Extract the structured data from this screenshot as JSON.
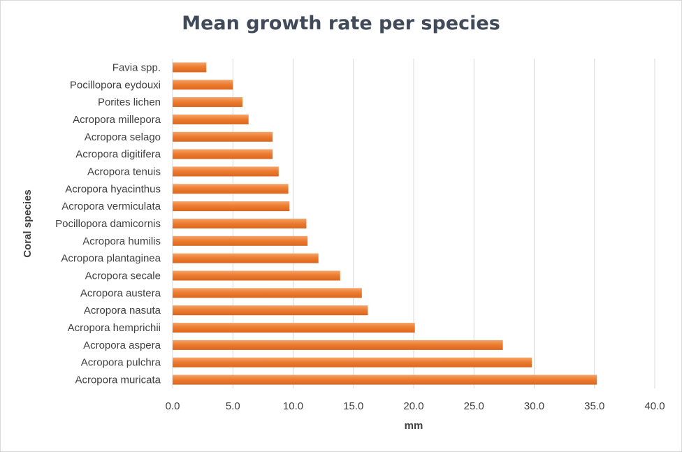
{
  "chart_data": {
    "type": "bar",
    "orientation": "horizontal",
    "title": "Mean growth rate per species",
    "xlabel": "mm",
    "ylabel": "Coral species",
    "xlim": [
      0,
      40
    ],
    "x_ticks": [
      "0.0",
      "5.0",
      "10.0",
      "15.0",
      "20.0",
      "25.0",
      "30.0",
      "35.0",
      "40.0"
    ],
    "grid": "vertical",
    "legend": "none",
    "bar_color": "#ed7d31",
    "bar_highlight": "#f4a46c",
    "categories": [
      "Favia spp.",
      "Pocillopora eydouxi",
      "Porites lichen",
      "Acropora millepora",
      "Acropora selago",
      "Acropora digitifera",
      "Acropora tenuis",
      "Acropora hyacinthus",
      "Acropora vermiculata",
      "Pocillopora damicornis",
      "Acropora humilis",
      "Acropora plantaginea",
      "Acropora secale",
      "Acropora austera",
      "Acropora nasuta",
      "Acropora hemprichii",
      "Acropora aspera",
      "Acropora pulchra",
      "Acropora muricata"
    ],
    "values": [
      2.8,
      5.0,
      5.8,
      6.3,
      8.3,
      8.3,
      8.8,
      9.6,
      9.7,
      11.1,
      11.2,
      12.1,
      13.9,
      15.7,
      16.2,
      20.1,
      27.4,
      29.8,
      35.2
    ]
  }
}
